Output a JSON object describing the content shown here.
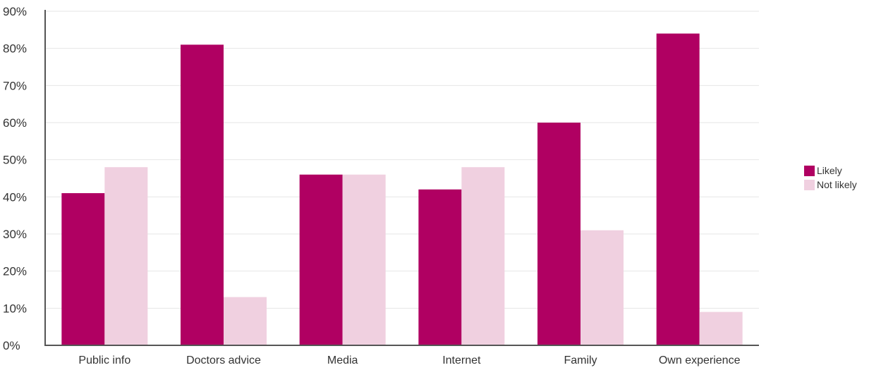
{
  "chart_data": {
    "type": "bar",
    "categories": [
      "Public info",
      "Doctors advice",
      "Media",
      "Internet",
      "Family",
      "Own experience"
    ],
    "series": [
      {
        "name": "Likely",
        "values": [
          41,
          81,
          46,
          42,
          60,
          84
        ],
        "color": "#b00062"
      },
      {
        "name": "Not likely",
        "values": [
          48,
          13,
          46,
          48,
          31,
          9
        ],
        "color": "#f0d0e0"
      }
    ],
    "ylim": [
      0,
      90
    ],
    "yticks": [
      0,
      10,
      20,
      30,
      40,
      50,
      60,
      70,
      80,
      90
    ],
    "ytick_labels": [
      "0%",
      "10%",
      "20%",
      "30%",
      "40%",
      "50%",
      "60%",
      "70%",
      "80%",
      "90%"
    ],
    "xlabel": "",
    "ylabel": "",
    "grid": true,
    "legend_position": "right"
  }
}
